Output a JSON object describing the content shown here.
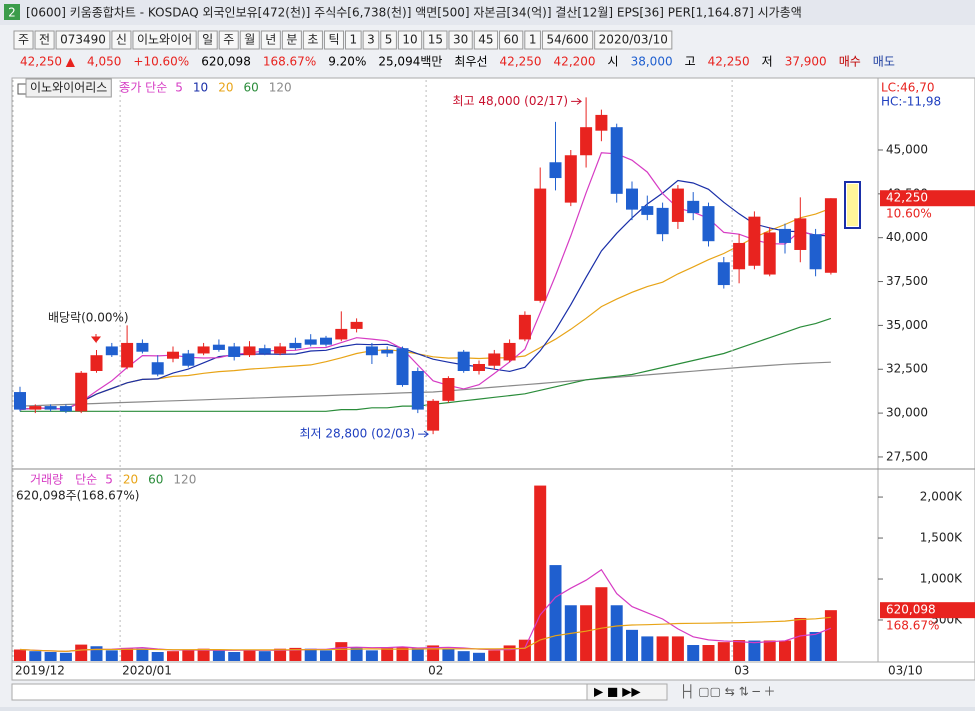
{
  "window": {
    "badge": "2",
    "title": "[0600] 키움종합차트 - KOSDAQ 외국인보유[472(천)] 주식수[6,738(천)] 액면[500] 자본금[34(억)] 결산[12월] EPS[36] PER[1,164.87] 시가총액"
  },
  "toolbar": [
    "주",
    "전",
    "073490",
    "신",
    "이노와이어",
    "일",
    "주",
    "월",
    "년",
    "분",
    "초",
    "틱",
    "1",
    "3",
    "5",
    "10",
    "15",
    "30",
    "45",
    "60",
    "1",
    "54/600",
    "2020/03/10"
  ],
  "info": [
    {
      "text": "42,250 ▲",
      "color": "#e8231f"
    },
    {
      "text": "4,050",
      "color": "#e8231f"
    },
    {
      "text": "+10.60%",
      "color": "#e8231f"
    },
    {
      "text": "620,098",
      "color": "#000000"
    },
    {
      "text": "168.67%",
      "color": "#e8231f"
    },
    {
      "text": "9.20%",
      "color": "#000000"
    },
    {
      "text": "25,094백만",
      "color": "#000000"
    },
    {
      "text": "최우선",
      "color": "#000000"
    },
    {
      "text": "42,250",
      "color": "#e8231f"
    },
    {
      "text": "42,200",
      "color": "#e8231f"
    },
    {
      "text": "시",
      "color": "#000000"
    },
    {
      "text": "38,000",
      "color": "#1f5fcf"
    },
    {
      "text": "고",
      "color": "#000000"
    },
    {
      "text": "42,250",
      "color": "#e8231f"
    },
    {
      "text": "저",
      "color": "#000000"
    },
    {
      "text": "37,900",
      "color": "#e8231f"
    },
    {
      "text": "매수",
      "color": "#c00000"
    },
    {
      "text": "매도",
      "color": "#1f3fa0"
    }
  ],
  "chart_data": [
    {
      "type": "candlestick",
      "title": "이노와이어리스",
      "ma_label": "종가 단순",
      "up_color": "#e8231f",
      "down_color": "#1f5fcf",
      "open": [
        31200,
        30200,
        30400,
        30400,
        30100,
        32400,
        33800,
        32600,
        34000,
        32900,
        33100,
        33400,
        33400,
        33900,
        33800,
        33300,
        33700,
        33400,
        34000,
        34200,
        34300,
        34200,
        34800,
        33800,
        33600,
        33700,
        32400,
        29000,
        30700,
        33500,
        32400,
        32700,
        33000,
        34200,
        36400,
        44300,
        42000,
        44700,
        46100,
        46300,
        42800,
        41800,
        41700,
        40900,
        42100,
        41800,
        38600,
        38200,
        38400,
        37900,
        40500,
        39300,
        40200,
        38000
      ],
      "high": [
        31500,
        30500,
        30500,
        30500,
        32400,
        33600,
        34000,
        35000,
        34200,
        33300,
        33800,
        33600,
        34000,
        34200,
        34000,
        34100,
        33900,
        34000,
        34300,
        34500,
        34400,
        35800,
        35400,
        34000,
        33800,
        33800,
        32600,
        30800,
        32100,
        33600,
        33000,
        33600,
        34200,
        35800,
        44000,
        46600,
        45000,
        48000,
        47300,
        46500,
        43200,
        42400,
        42000,
        43000,
        42600,
        42000,
        38900,
        40200,
        41500,
        40600,
        40800,
        42300,
        40500,
        42250
      ],
      "low": [
        30100,
        30000,
        30100,
        30000,
        30000,
        32300,
        33200,
        32500,
        33400,
        32100,
        32900,
        32600,
        33300,
        33500,
        33000,
        33200,
        33300,
        33300,
        33600,
        33800,
        33800,
        34100,
        34600,
        32800,
        33200,
        31500,
        30000,
        28800,
        30600,
        32300,
        32200,
        32500,
        32900,
        34100,
        36300,
        42700,
        41800,
        44000,
        45500,
        42000,
        41000,
        41000,
        39800,
        40500,
        41000,
        39500,
        37100,
        37400,
        38200,
        37800,
        39100,
        38600,
        37800,
        37900
      ],
      "close": [
        30200,
        30400,
        30200,
        30100,
        32300,
        33300,
        33300,
        34000,
        33500,
        32200,
        33500,
        32700,
        33800,
        33600,
        33200,
        33800,
        33400,
        33800,
        33700,
        33900,
        33900,
        34800,
        35200,
        33300,
        33400,
        31600,
        30200,
        30700,
        32000,
        32400,
        32800,
        33400,
        34000,
        35600,
        42800,
        43400,
        44700,
        46300,
        47000,
        42500,
        41600,
        41300,
        40200,
        42800,
        41400,
        39800,
        37300,
        39700,
        41200,
        40300,
        39700,
        41100,
        38200,
        42250
      ],
      "ma": [
        {
          "name": 5,
          "color": "#d63cc4"
        },
        {
          "name": 10,
          "color": "#1a2fa8"
        },
        {
          "name": 20,
          "color": "#e8a417"
        },
        {
          "name": 60,
          "color": "#2a8c3a",
          "values": [
            30100,
            30100,
            30100,
            30100,
            30100,
            30100,
            30100,
            30100,
            30100,
            30100,
            30100,
            30100,
            30100,
            30100,
            30100,
            30100,
            30100,
            30100,
            30100,
            30100,
            30100,
            30200,
            30200,
            30300,
            30300,
            30400,
            30400,
            30500,
            30600,
            30700,
            30800,
            30900,
            31000,
            31100,
            31300,
            31500,
            31700,
            31900,
            32000,
            32100,
            32200,
            32400,
            32600,
            32800,
            33000,
            33200,
            33400,
            33700,
            34000,
            34300,
            34600,
            34900,
            35100,
            35400
          ]
        },
        {
          "name": 120,
          "color": "#8a8a8a",
          "values": [
            30400,
            30430,
            30460,
            30490,
            30520,
            30550,
            30580,
            30610,
            30640,
            30670,
            30700,
            30730,
            30760,
            30790,
            30820,
            30850,
            30880,
            30910,
            30940,
            30970,
            31000,
            31030,
            31060,
            31090,
            31120,
            31150,
            31180,
            31200,
            31270,
            31340,
            31410,
            31480,
            31550,
            31620,
            31690,
            31760,
            31830,
            31900,
            31970,
            32040,
            32110,
            32180,
            32250,
            32320,
            32390,
            32460,
            32530,
            32600,
            32660,
            32720,
            32780,
            32830,
            32870,
            32900
          ]
        }
      ],
      "ylim": [
        26870,
        48990
      ],
      "yticks": [
        {
          "value": 27500,
          "label": "27,500"
        },
        {
          "value": 30000,
          "label": "30,000"
        },
        {
          "value": 32500,
          "label": "32,500"
        },
        {
          "value": 35000,
          "label": "35,000"
        },
        {
          "value": 37500,
          "label": "37,500"
        },
        {
          "value": 40000,
          "label": "40,000"
        },
        {
          "value": 42500,
          "label": "42,500"
        },
        {
          "value": 45000,
          "label": "45,000"
        }
      ],
      "annotations": {
        "max": "최고 48,000 (02/17)",
        "min": "최저 28,800 (02/03)",
        "dividend": "배당락(0.00%)"
      },
      "side_labels": {
        "lc": "LC:46,70",
        "hc": "HC:-11,98",
        "last": "42,250",
        "change": "10.60%"
      }
    },
    {
      "type": "bar",
      "title": "거래량",
      "ma_label": "단순",
      "up_color": "#e8231f",
      "down_color": "#1f5fcf",
      "categories": [
        "2019/12",
        null,
        null,
        null,
        null,
        null,
        null,
        "2020/01",
        null,
        null,
        null,
        null,
        null,
        null,
        null,
        null,
        null,
        null,
        null,
        null,
        null,
        null,
        null,
        null,
        null,
        null,
        null,
        "02",
        null,
        null,
        null,
        null,
        null,
        null,
        null,
        null,
        null,
        null,
        null,
        null,
        null,
        null,
        null,
        null,
        null,
        null,
        null,
        "03",
        null,
        null,
        null,
        null,
        null,
        null
      ],
      "values": [
        140000,
        120000,
        110000,
        100000,
        200000,
        180000,
        130000,
        160000,
        150000,
        110000,
        120000,
        130000,
        150000,
        140000,
        110000,
        130000,
        120000,
        150000,
        160000,
        150000,
        130000,
        230000,
        170000,
        130000,
        160000,
        170000,
        160000,
        190000,
        150000,
        120000,
        100000,
        130000,
        190000,
        260000,
        2140000,
        1170000,
        680000,
        680000,
        900000,
        680000,
        380000,
        300000,
        300000,
        300000,
        195000,
        195000,
        230000,
        255000,
        250000,
        250000,
        250000,
        525000,
        354000,
        620098
      ],
      "ma": [
        {
          "name": 5,
          "color": "#d63cc4"
        },
        {
          "name": 20,
          "color": "#e8a417"
        },
        {
          "name": 60,
          "color": "#2a8c3a"
        },
        {
          "name": 120,
          "color": "#8a8a8a"
        }
      ],
      "ylim": [
        0,
        2330000
      ],
      "yticks": [
        {
          "value": 500000,
          "label": "500K"
        },
        {
          "value": 1000000,
          "label": "1,000K"
        },
        {
          "value": 1500000,
          "label": "1,500K"
        },
        {
          "value": 2000000,
          "label": "2,000K"
        }
      ],
      "legend_value": "620,098주(168.67%)",
      "side_labels": {
        "last": "620,098",
        "change": "168.67%"
      },
      "last_date": "03/10"
    }
  ]
}
